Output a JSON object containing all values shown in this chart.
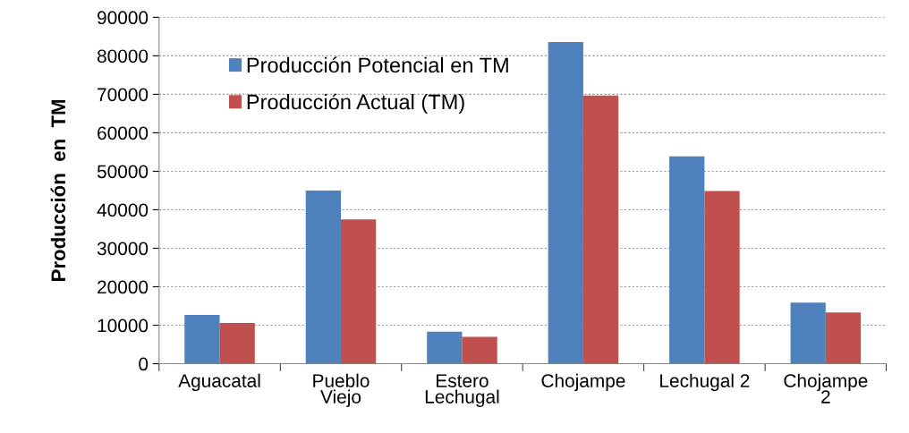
{
  "chart_data": {
    "type": "bar",
    "ylabel": "Producción  en  TM",
    "categories": [
      "Aguacatal",
      "Pueblo\nViejo",
      "Estero\nLechugal",
      "Chojampe",
      "Lechugal 2",
      "Chojampe\n2"
    ],
    "series": [
      {
        "name": "Producción Potencial en TM",
        "color": "#4f81bd",
        "values": [
          12700,
          45000,
          8300,
          83600,
          53900,
          15900
        ]
      },
      {
        "name": "Producción Actual (TM)",
        "color": "#c0504d",
        "values": [
          10600,
          37500,
          7000,
          69700,
          44900,
          13300
        ]
      }
    ],
    "ylim": [
      0,
      90000
    ],
    "yticks": [
      0,
      10000,
      20000,
      30000,
      40000,
      50000,
      60000,
      70000,
      80000,
      90000
    ],
    "grid": "y",
    "legend": "top left"
  }
}
